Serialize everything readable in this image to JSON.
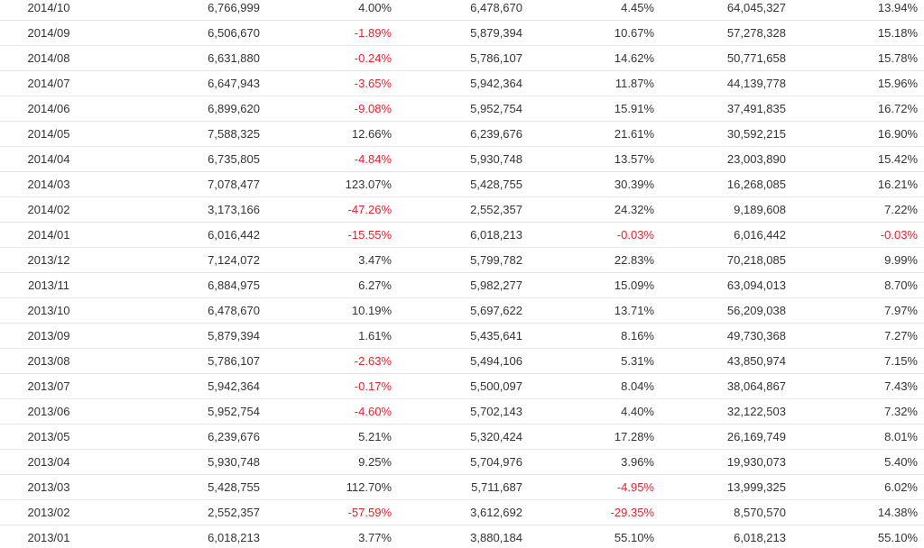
{
  "table": {
    "colors": {
      "text": "#333333",
      "negative": "#e8212d",
      "border": "#e6e6e6"
    },
    "rows": [
      [
        "2014/10",
        "6,766,999",
        "4.00%",
        "6,478,670",
        "4.45%",
        "64,045,327",
        "13.94%"
      ],
      [
        "2014/09",
        "6,506,670",
        "-1.89%",
        "5,879,394",
        "10.67%",
        "57,278,328",
        "15.18%"
      ],
      [
        "2014/08",
        "6,631,880",
        "-0.24%",
        "5,786,107",
        "14.62%",
        "50,771,658",
        "15.78%"
      ],
      [
        "2014/07",
        "6,647,943",
        "-3.65%",
        "5,942,364",
        "11.87%",
        "44,139,778",
        "15.96%"
      ],
      [
        "2014/06",
        "6,899,620",
        "-9.08%",
        "5,952,754",
        "15.91%",
        "37,491,835",
        "16.72%"
      ],
      [
        "2014/05",
        "7,588,325",
        "12.66%",
        "6,239,676",
        "21.61%",
        "30,592,215",
        "16.90%"
      ],
      [
        "2014/04",
        "6,735,805",
        "-4.84%",
        "5,930,748",
        "13.57%",
        "23,003,890",
        "15.42%"
      ],
      [
        "2014/03",
        "7,078,477",
        "123.07%",
        "5,428,755",
        "30.39%",
        "16,268,085",
        "16.21%"
      ],
      [
        "2014/02",
        "3,173,166",
        "-47.26%",
        "2,552,357",
        "24.32%",
        "9,189,608",
        "7.22%"
      ],
      [
        "2014/01",
        "6,016,442",
        "-15.55%",
        "6,018,213",
        "-0.03%",
        "6,016,442",
        "-0.03%"
      ],
      [
        "2013/12",
        "7,124,072",
        "3.47%",
        "5,799,782",
        "22.83%",
        "70,218,085",
        "9.99%"
      ],
      [
        "2013/11",
        "6,884,975",
        "6.27%",
        "5,982,277",
        "15.09%",
        "63,094,013",
        "8.70%"
      ],
      [
        "2013/10",
        "6,478,670",
        "10.19%",
        "5,697,622",
        "13.71%",
        "56,209,038",
        "7.97%"
      ],
      [
        "2013/09",
        "5,879,394",
        "1.61%",
        "5,435,641",
        "8.16%",
        "49,730,368",
        "7.27%"
      ],
      [
        "2013/08",
        "5,786,107",
        "-2.63%",
        "5,494,106",
        "5.31%",
        "43,850,974",
        "7.15%"
      ],
      [
        "2013/07",
        "5,942,364",
        "-0.17%",
        "5,500,097",
        "8.04%",
        "38,064,867",
        "7.43%"
      ],
      [
        "2013/06",
        "5,952,754",
        "-4.60%",
        "5,702,143",
        "4.40%",
        "32,122,503",
        "7.32%"
      ],
      [
        "2013/05",
        "6,239,676",
        "5.21%",
        "5,320,424",
        "17.28%",
        "26,169,749",
        "8.01%"
      ],
      [
        "2013/04",
        "5,930,748",
        "9.25%",
        "5,704,976",
        "3.96%",
        "19,930,073",
        "5.40%"
      ],
      [
        "2013/03",
        "5,428,755",
        "112.70%",
        "5,711,687",
        "-4.95%",
        "13,999,325",
        "6.02%"
      ],
      [
        "2013/02",
        "2,552,357",
        "-57.59%",
        "3,612,692",
        "-29.35%",
        "8,570,570",
        "14.38%"
      ],
      [
        "2013/01",
        "6,018,213",
        "3.77%",
        "3,880,184",
        "55.10%",
        "6,018,213",
        "55.10%"
      ]
    ]
  }
}
